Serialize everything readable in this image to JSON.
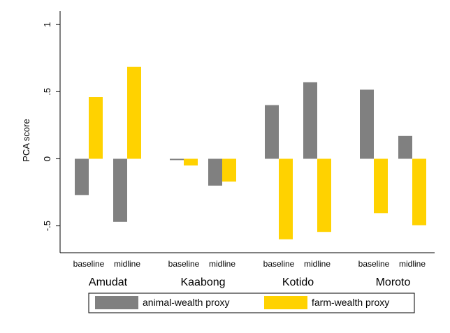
{
  "chart_data": {
    "type": "bar",
    "ylabel": "PCA score",
    "ylim": [
      -0.7,
      1.1
    ],
    "yticks": [
      {
        "value": 1,
        "label": "1"
      },
      {
        "value": 0.5,
        "label": ".5"
      },
      {
        "value": 0,
        "label": "0"
      },
      {
        "value": -0.5,
        "label": "-.5"
      }
    ],
    "grid": false,
    "legend_position": "bottom",
    "groups": [
      "Amudat",
      "Kaabong",
      "Kotido",
      "Moroto"
    ],
    "subcategories": [
      "baseline",
      "midline"
    ],
    "series": [
      {
        "name": "animal-wealth proxy",
        "color": "#808080",
        "values": [
          -0.27,
          -0.47,
          -0.01,
          -0.2,
          0.4,
          0.57,
          0.515,
          0.17
        ]
      },
      {
        "name": "farm-wealth proxy",
        "color": "#ffd200",
        "values": [
          0.46,
          0.685,
          -0.05,
          -0.17,
          -0.6,
          -0.545,
          -0.405,
          -0.495
        ]
      }
    ]
  }
}
